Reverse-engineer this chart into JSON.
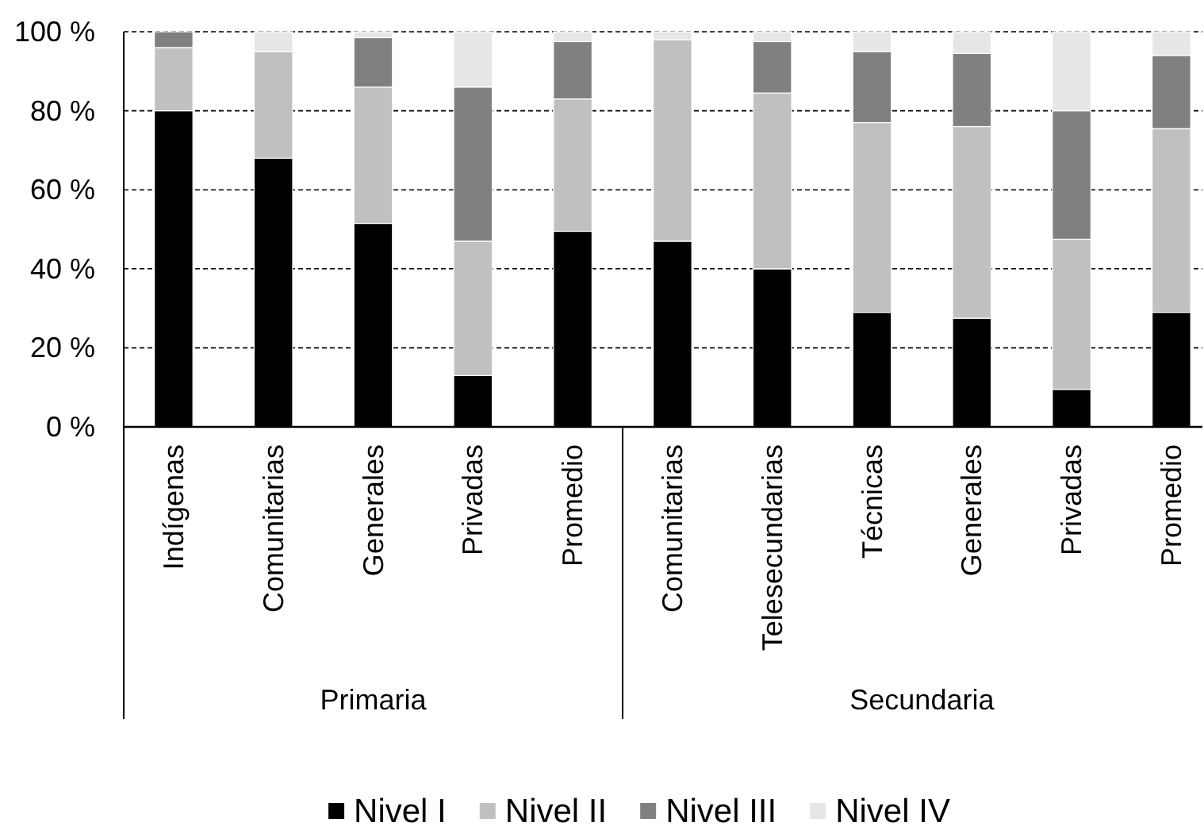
{
  "chart_data": [
    {
      "type": "bar",
      "stacked": true,
      "xlabel": "Primaria",
      "categories": [
        "Indígenas",
        "Comunitarias",
        "Generales",
        "Privadas",
        "Promedio"
      ],
      "series": [
        {
          "name": "Nivel I",
          "color": "#000000",
          "values": [
            80,
            68,
            51.5,
            13,
            49.5
          ]
        },
        {
          "name": "Nivel II",
          "color": "#c0c0c0",
          "values": [
            16,
            27,
            34.5,
            34,
            33.5
          ]
        },
        {
          "name": "Nivel III",
          "color": "#808080",
          "values": [
            4,
            0,
            12.5,
            39,
            14.5
          ]
        },
        {
          "name": "Nivel IV",
          "color": "#e6e6e6",
          "values": [
            0,
            5,
            1.5,
            14,
            2.5
          ]
        }
      ],
      "ylim": [
        0,
        100
      ],
      "yticks": [
        {
          "value": 0,
          "label": "0 %"
        },
        {
          "value": 20,
          "label": "20 %"
        },
        {
          "value": 40,
          "label": "40 %"
        },
        {
          "value": 60,
          "label": "60 %"
        },
        {
          "value": 80,
          "label": "80 %"
        },
        {
          "value": 100,
          "label": "100 %"
        }
      ],
      "grid": "y",
      "legend": "bottom"
    },
    {
      "type": "bar",
      "stacked": true,
      "xlabel": "Secundaria",
      "categories": [
        "Comunitarias",
        "Telesecundarias",
        "Técnicas",
        "Generales",
        "Privadas",
        "Promedio"
      ],
      "series": [
        {
          "color": "#000000",
          "values": [
            47,
            40,
            29,
            27.5,
            9.5,
            29
          ]
        },
        {
          "color": "#c0c0c0",
          "values": [
            51,
            44.5,
            48,
            48.5,
            38,
            46.5
          ]
        },
        {
          "color": "#808080",
          "values": [
            0,
            13,
            18,
            18.5,
            32.5,
            18.5
          ]
        },
        {
          "color": "#e6e6e6",
          "values": [
            2,
            2.5,
            5,
            5.5,
            20,
            6
          ]
        }
      ],
      "ylim": [
        0,
        100
      ],
      "yticks": [
        0,
        20,
        40,
        60,
        80,
        100
      ],
      "grid": "y",
      "tick_labels": "x"
    }
  ]
}
